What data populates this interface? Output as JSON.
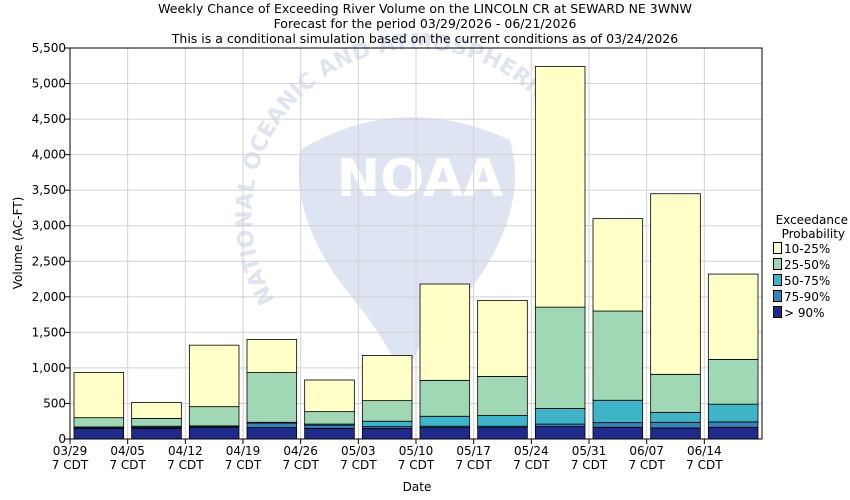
{
  "header": {
    "line1": "Weekly Chance of Exceeding River Volume on the LINCOLN CR at SEWARD NE 3WNW",
    "line2": "Forecast for the period 03/29/2026 - 06/21/2026",
    "line3": "This is a conditional simulation based on the current conditions as of 03/24/2026"
  },
  "watermark": {
    "text": "NATIONAL OCEANIC AND ATMOSPHERIC",
    "logo": "NOAA"
  },
  "legend": {
    "title_line1": "Exceedance",
    "title_line2": "Probability"
  },
  "chart_data": {
    "type": "bar",
    "stacked": true,
    "title": "Weekly Chance of Exceeding River Volume on the LINCOLN CR at SEWARD NE 3WNW",
    "xlabel": "Date",
    "ylabel": "Volume (AC-FT)",
    "ylim": [
      0,
      5500
    ],
    "yticks": [
      0,
      500,
      1000,
      1500,
      2000,
      2500,
      3000,
      3500,
      4000,
      4500,
      5000,
      5500
    ],
    "ytick_labels": [
      "0",
      "500",
      "1,000",
      "1,500",
      "2,000",
      "2,500",
      "3,000",
      "3,500",
      "4,000",
      "4,500",
      "5,000",
      "5,500"
    ],
    "xtick_labels": [
      [
        "03/29",
        "7 CDT"
      ],
      [
        "04/05",
        "7 CDT"
      ],
      [
        "04/12",
        "7 CDT"
      ],
      [
        "04/19",
        "7 CDT"
      ],
      [
        "04/26",
        "7 CDT"
      ],
      [
        "05/03",
        "7 CDT"
      ],
      [
        "05/10",
        "7 CDT"
      ],
      [
        "05/17",
        "7 CDT"
      ],
      [
        "05/24",
        "7 CDT"
      ],
      [
        "05/31",
        "7 CDT"
      ],
      [
        "06/07",
        "7 CDT"
      ],
      [
        "06/14",
        "7 CDT"
      ]
    ],
    "categories": [
      "03/29",
      "04/05",
      "04/12",
      "04/19",
      "04/26",
      "05/03",
      "05/10",
      "05/17",
      "05/24",
      "05/31",
      "06/07",
      "06/14"
    ],
    "grid": true,
    "legend_position": "right",
    "series": [
      {
        "name": "> 90%",
        "color": "#1f2a8a",
        "top": [
          150,
          150,
          165,
          160,
          150,
          150,
          160,
          160,
          175,
          165,
          155,
          165
        ]
      },
      {
        "name": "75-90%",
        "color": "#3a82b8",
        "top": [
          165,
          165,
          180,
          225,
          195,
          175,
          180,
          180,
          210,
          230,
          235,
          240
        ]
      },
      {
        "name": "50-75%",
        "color": "#3fb3c8",
        "top": [
          170,
          180,
          185,
          235,
          210,
          250,
          320,
          330,
          430,
          545,
          375,
          490
        ]
      },
      {
        "name": "25-50%",
        "color": "#a0d8b5",
        "top": [
          300,
          290,
          455,
          935,
          385,
          540,
          825,
          880,
          1855,
          1800,
          910,
          1120
        ]
      },
      {
        "name": "10-25%",
        "color": "#ffffc8",
        "top": [
          935,
          515,
          1320,
          1400,
          830,
          1175,
          2180,
          1950,
          5240,
          3100,
          3450,
          2320
        ]
      }
    ]
  }
}
